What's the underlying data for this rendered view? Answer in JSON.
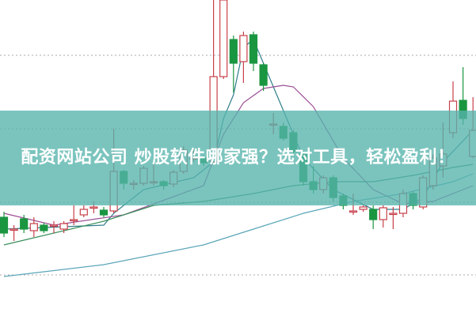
{
  "banner": {
    "title": "配资网站公司 炒股软件哪家强？选对工具，轻松盈利！"
  },
  "colors": {
    "up": "#c8404a",
    "down": "#1a9641",
    "banner": "#56b4ac",
    "grid": "#aaaaaa"
  },
  "chart_data": {
    "type": "candlestick",
    "title": "",
    "grid": true,
    "grid_levels": [
      330,
      237,
      144,
      52
    ],
    "ylim": [
      0,
      400
    ],
    "candles": [
      [
        125,
        105,
        132,
        100
      ],
      [
        110,
        110,
        115,
        95
      ],
      [
        123,
        110,
        128,
        105
      ],
      [
        108,
        117,
        125,
        100
      ],
      [
        115,
        108,
        118,
        105
      ],
      [
        115,
        115,
        120,
        105
      ],
      [
        110,
        117,
        120,
        105
      ],
      [
        122,
        122,
        140,
        115
      ],
      [
        128,
        135,
        140,
        125
      ],
      [
        138,
        138,
        145,
        130
      ],
      [
        134,
        128,
        138,
        125
      ],
      [
        133,
        183,
        237,
        130
      ],
      [
        183,
        168,
        185,
        160
      ],
      [
        168,
        168,
        172,
        160
      ],
      [
        168,
        187,
        190,
        165
      ],
      [
        170,
        170,
        195,
        165
      ],
      [
        170,
        165,
        172,
        160
      ],
      [
        167,
        182,
        185,
        163
      ],
      [
        183,
        210,
        215,
        180
      ],
      [
        200,
        200,
        212,
        195
      ],
      [
        200,
        194,
        203,
        190
      ],
      [
        195,
        303,
        400,
        192
      ],
      [
        303,
        400,
        400,
        300
      ],
      [
        350,
        320,
        355,
        283
      ],
      [
        322,
        355,
        360,
        295
      ],
      [
        356,
        320,
        360,
        310
      ],
      [
        318,
        292,
        320,
        285
      ],
      [
        243,
        243,
        257,
        230
      ],
      [
        240,
        225,
        245,
        222
      ],
      [
        232,
        208,
        235,
        205
      ],
      [
        205,
        170,
        210,
        165
      ],
      [
        170,
        160,
        190,
        155
      ],
      [
        160,
        175,
        178,
        155
      ],
      [
        175,
        150,
        178,
        145
      ],
      [
        152,
        140,
        155,
        135
      ],
      [
        133,
        133,
        155,
        128
      ],
      [
        135,
        138,
        140,
        132
      ],
      [
        135,
        122,
        140,
        110
      ],
      [
        122,
        137,
        140,
        112
      ],
      [
        130,
        130,
        138,
        110
      ],
      [
        130,
        155,
        160,
        125
      ],
      [
        155,
        140,
        158,
        135
      ],
      [
        138,
        175,
        178,
        135
      ],
      [
        165,
        200,
        205,
        160
      ],
      [
        190,
        205,
        245,
        175
      ],
      [
        232,
        272,
        297,
        225
      ],
      [
        273,
        250,
        315,
        242
      ],
      [
        202,
        235,
        277,
        200
      ]
    ],
    "moving_averages": [
      {
        "color": "#2e7d8a",
        "points": [
          [
            0,
            110
          ],
          [
            10,
            115
          ],
          [
            11,
            130
          ],
          [
            14,
            160
          ],
          [
            19,
            175
          ],
          [
            21,
            195
          ],
          [
            22,
            250
          ],
          [
            23,
            280
          ],
          [
            24,
            340
          ],
          [
            25,
            350
          ],
          [
            26,
            320
          ],
          [
            28,
            260
          ],
          [
            30,
            200
          ],
          [
            33,
            160
          ],
          [
            37,
            135
          ],
          [
            40,
            135
          ],
          [
            42,
            150
          ],
          [
            44,
            195
          ],
          [
            47,
            235
          ]
        ]
      },
      {
        "color": "#9b4f96",
        "points": [
          [
            0,
            130
          ],
          [
            5,
            115
          ],
          [
            12,
            128
          ],
          [
            20,
            165
          ],
          [
            22,
            230
          ],
          [
            24,
            270
          ],
          [
            26,
            288
          ],
          [
            28,
            292
          ],
          [
            29,
            290
          ],
          [
            31,
            265
          ],
          [
            34,
            200
          ],
          [
            37,
            160
          ],
          [
            40,
            142
          ],
          [
            43,
            145
          ],
          [
            46,
            160
          ],
          [
            47,
            165
          ]
        ]
      },
      {
        "color": "#3a8f5c",
        "points": [
          [
            0,
            90
          ],
          [
            10,
            120
          ],
          [
            15,
            140
          ],
          [
            20,
            145
          ],
          [
            25,
            155
          ],
          [
            29,
            165
          ],
          [
            33,
            170
          ],
          [
            37,
            170
          ],
          [
            41,
            178
          ],
          [
            45,
            188
          ],
          [
            47,
            192
          ]
        ]
      },
      {
        "color": "#5aa6b8",
        "points": [
          [
            0,
            50
          ],
          [
            10,
            65
          ],
          [
            20,
            90
          ],
          [
            25,
            110
          ],
          [
            30,
            130
          ],
          [
            35,
            145
          ],
          [
            40,
            155
          ],
          [
            45,
            170
          ],
          [
            47,
            180
          ]
        ]
      }
    ]
  }
}
